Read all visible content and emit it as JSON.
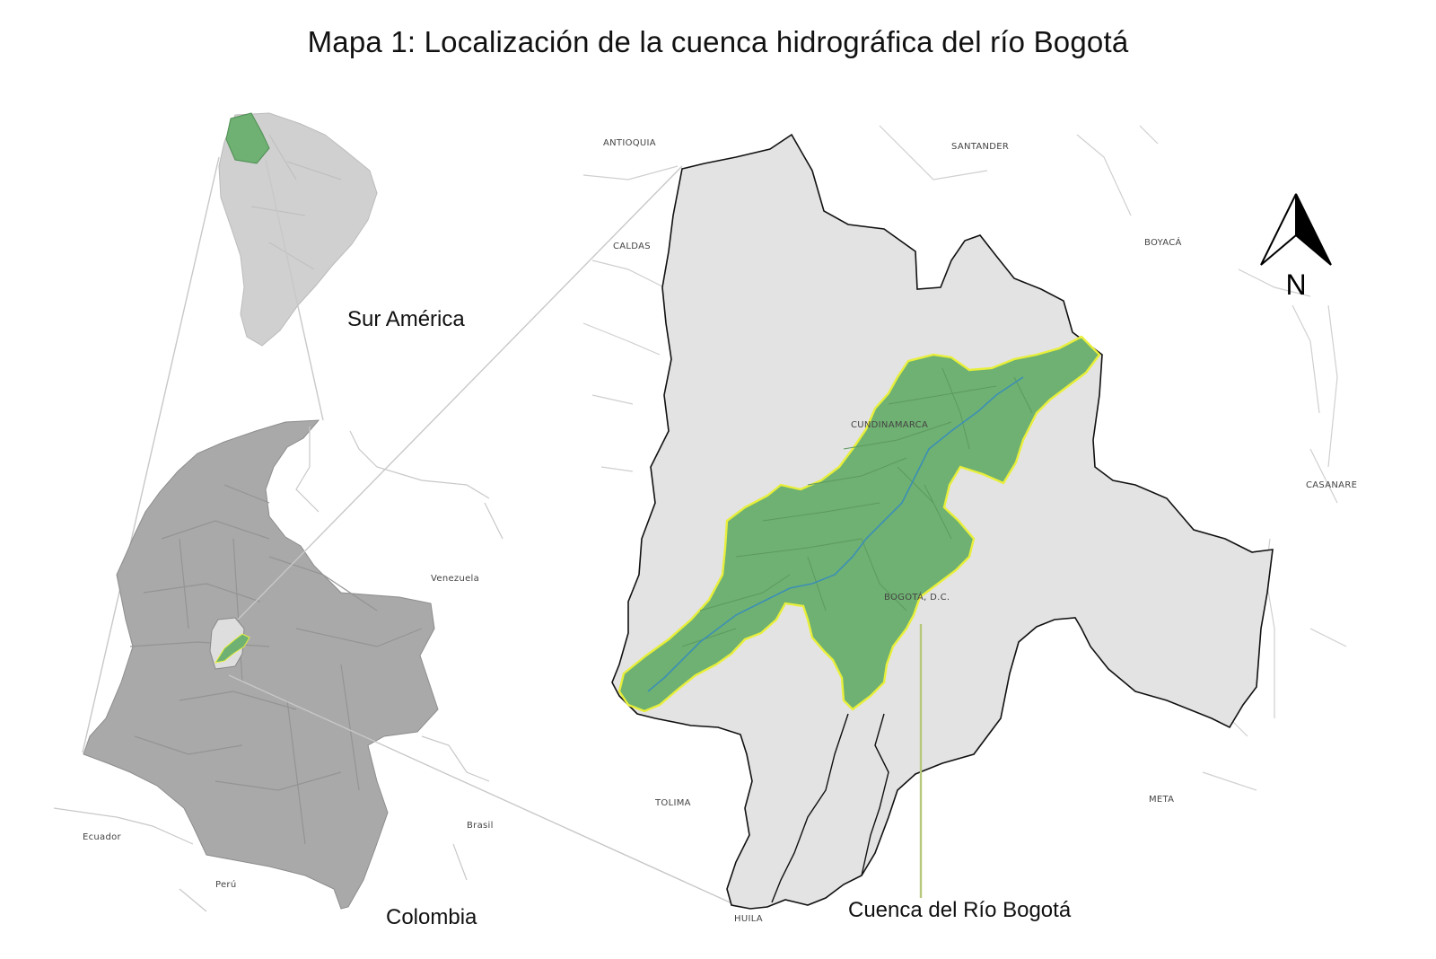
{
  "title": "Mapa 1: Localización de la cuenca hidrográfica del río Bogotá",
  "inset_labels": {
    "south_america": "Sur América",
    "colombia": "Colombia",
    "basin": "Cuenca del Río Bogotá"
  },
  "neighbor_departments": {
    "antioquia": "ANTIOQUIA",
    "santander": "SANTANDER",
    "caldas": "CALDAS",
    "boyaca": "BOYACÁ",
    "casanare": "CASANARE",
    "tolima": "TOLIMA",
    "meta": "META",
    "huila": "HUILA"
  },
  "internal_labels": {
    "cundinamarca": "CUNDINAMARCA",
    "bogota": "BOGOTÁ, D.C."
  },
  "country_labels": {
    "venezuela": "Venezuela",
    "ecuador": "Ecuador",
    "peru": "Perú",
    "brasil": "Brasil"
  },
  "north_arrow": {
    "letter": "N"
  },
  "colors": {
    "basin_fill": "#6fb172",
    "basin_outline": "#e8ef3a",
    "department_fill": "#e3e3e3",
    "colombia_fill": "#a9a9a9",
    "continent_fill": "#cfcfcf",
    "river": "#3c8fb5",
    "lines": "#bbbbbb"
  }
}
